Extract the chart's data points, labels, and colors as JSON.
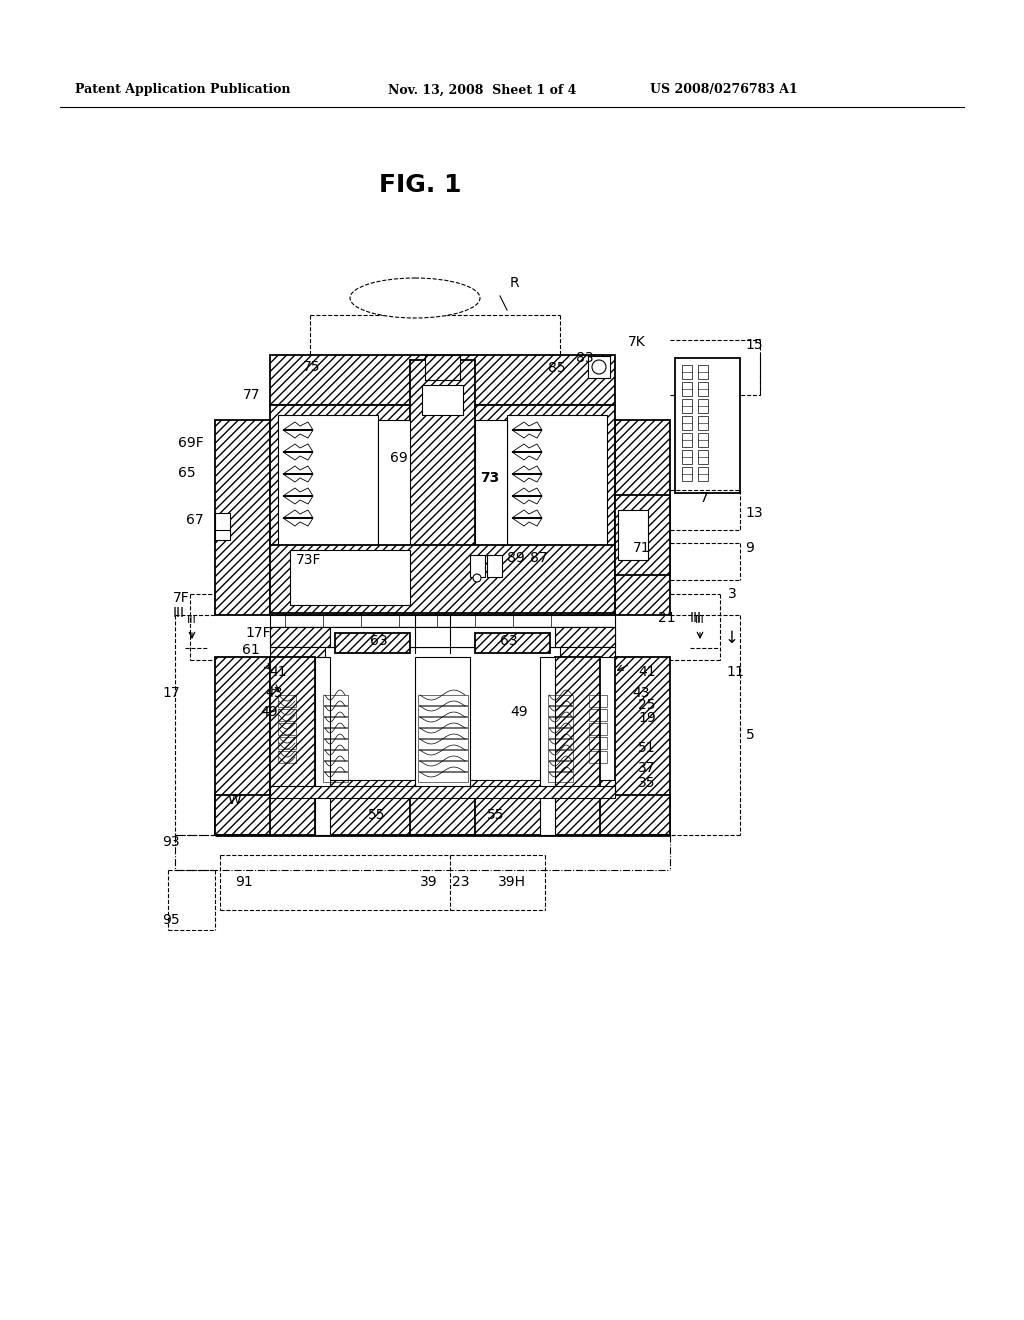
{
  "title": "FIG. 1",
  "header_left": "Patent Application Publication",
  "header_mid": "Nov. 13, 2008  Sheet 1 of 4",
  "header_right": "US 2008/0276783 A1",
  "bg_color": "#ffffff"
}
